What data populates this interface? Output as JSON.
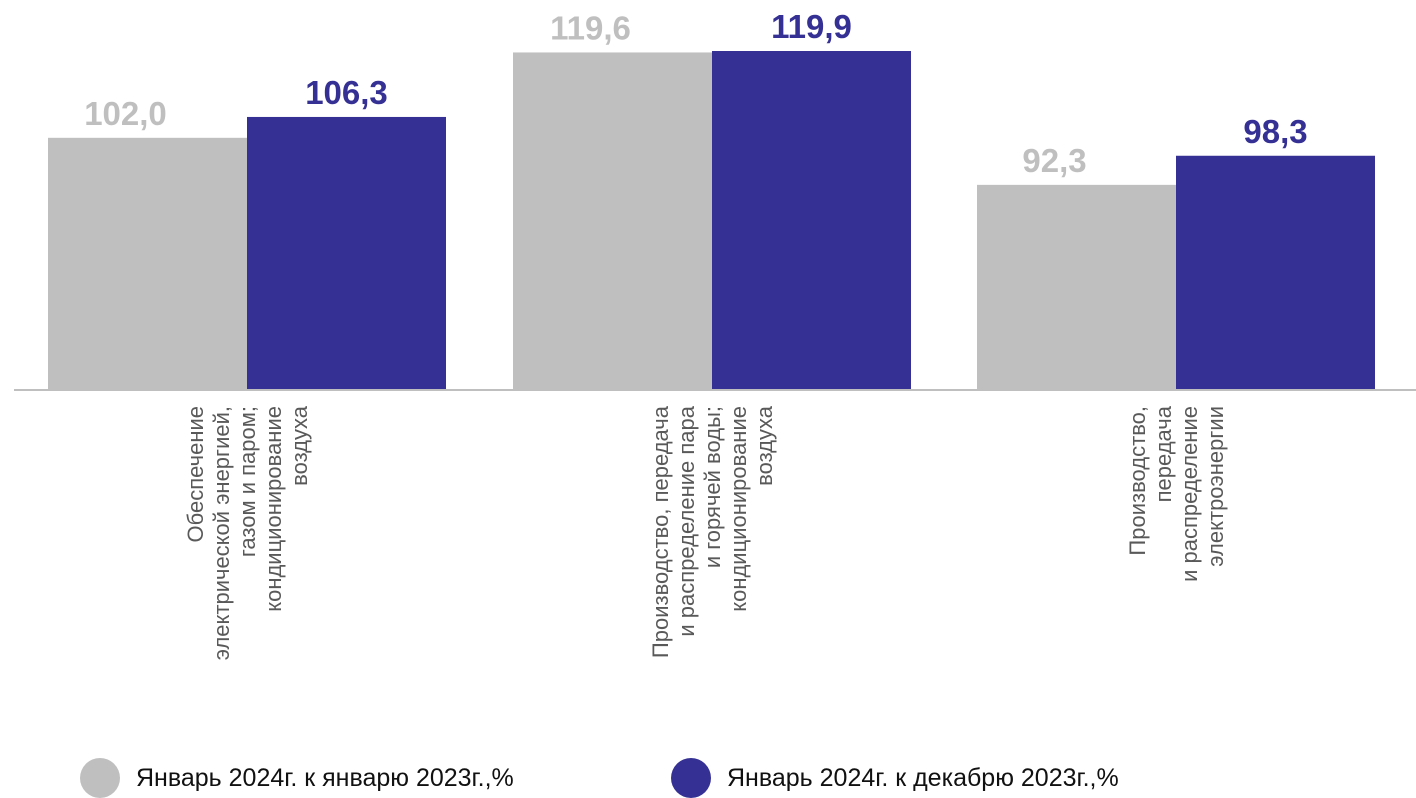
{
  "chart_data": {
    "type": "bar",
    "categories": [
      [
        "Обеспечение",
        "электрической энергией,",
        "газом и паром;",
        "кондиционирование",
        "воздуха"
      ],
      [
        "Производство, передача",
        "и распределение пара",
        "и горячей воды;",
        "кондиционирование",
        "воздуха"
      ],
      [
        "Производство,",
        "передача",
        "и распределение",
        "электроэнергии"
      ]
    ],
    "series": [
      {
        "name": "Январь 2024г. к январю 2023г.,%",
        "values": [
          102.0,
          119.6,
          92.3
        ],
        "labels": [
          "102,0",
          "119,6",
          "92,3"
        ],
        "color": "#bfbfbf"
      },
      {
        "name": "Январь 2024г. к декабрю 2023г.,%",
        "values": [
          106.3,
          119.9,
          98.3
        ],
        "labels": [
          "106,3",
          "119,9",
          "98,3"
        ],
        "color": "#353093"
      }
    ],
    "ylim": [
      0,
      125
    ],
    "baseline": 50,
    "grid": false,
    "legend_position": "bottom",
    "axis_color": "#bfbfbf",
    "category_label_color": "#595959"
  }
}
